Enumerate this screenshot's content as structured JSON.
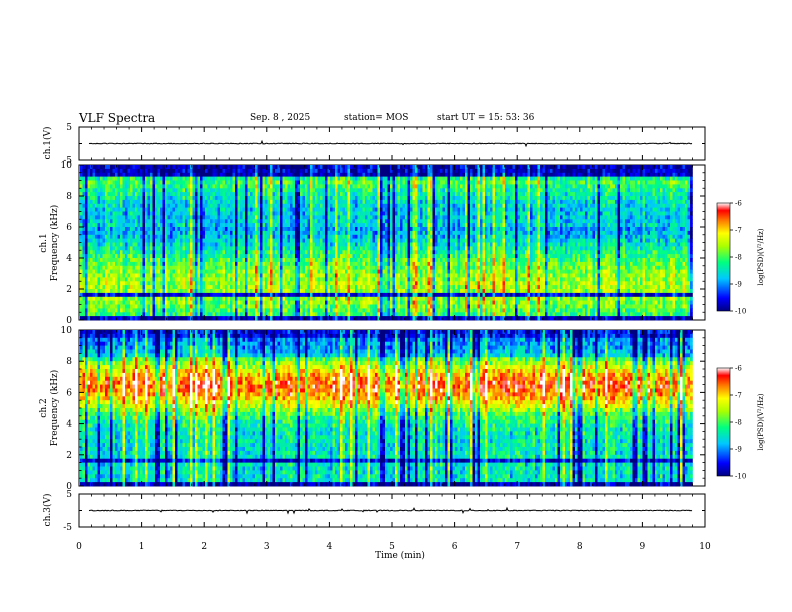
{
  "header": {
    "title": "VLF Spectra",
    "date": "Sep. 8  , 2025",
    "station": "station= MOS",
    "start": "start  UT =   15: 53: 36"
  },
  "chart_data": [
    {
      "type": "line",
      "panel": "ch1-waveform",
      "ylabel": "ch.1(V)",
      "ylim": [
        -5,
        5
      ],
      "yticks": [
        "5",
        "-5"
      ],
      "xlim": [
        0,
        10
      ],
      "series": [
        {
          "values_approx": "near 0 V with occasional small spikes"
        }
      ]
    },
    {
      "type": "heatmap",
      "panel": "ch1-spectrogram",
      "ylabel": "ch.1\nFrequency (kHz)",
      "ylim": [
        0,
        10
      ],
      "yticks": [
        "0",
        "2",
        "4",
        "6",
        "8",
        "10"
      ],
      "xlim": [
        0,
        9.8
      ],
      "colorbar": {
        "label": "log(PSD)(V²/Hz)",
        "ticks": [
          "-6",
          "-7",
          "-8",
          "-9",
          "-10"
        ],
        "range": [
          -10,
          -6
        ]
      }
    },
    {
      "type": "heatmap",
      "panel": "ch2-spectrogram",
      "ylabel": "ch.2\nFrequency (kHz)",
      "ylim": [
        0,
        10
      ],
      "yticks": [
        "0",
        "2",
        "4",
        "6",
        "8",
        "10"
      ],
      "xlim": [
        0,
        9.8
      ],
      "colorbar": {
        "label": "log(PSD)(V²/Hz)",
        "ticks": [
          "-6",
          "-7",
          "-8",
          "-9",
          "-10"
        ],
        "range": [
          -10,
          -6
        ]
      }
    },
    {
      "type": "line",
      "panel": "ch3-waveform",
      "ylabel": "ch.3(V)",
      "ylim": [
        -5,
        5
      ],
      "yticks": [
        "5",
        "-5"
      ],
      "xlim": [
        0,
        10
      ],
      "series": [
        {
          "values_approx": "near 0 V with occasional small spikes"
        }
      ]
    }
  ],
  "xaxis": {
    "label": "Time  (min)",
    "ticks": [
      "0",
      "1",
      "2",
      "3",
      "4",
      "5",
      "6",
      "7",
      "8",
      "9",
      "10"
    ],
    "range": [
      0,
      10
    ]
  }
}
